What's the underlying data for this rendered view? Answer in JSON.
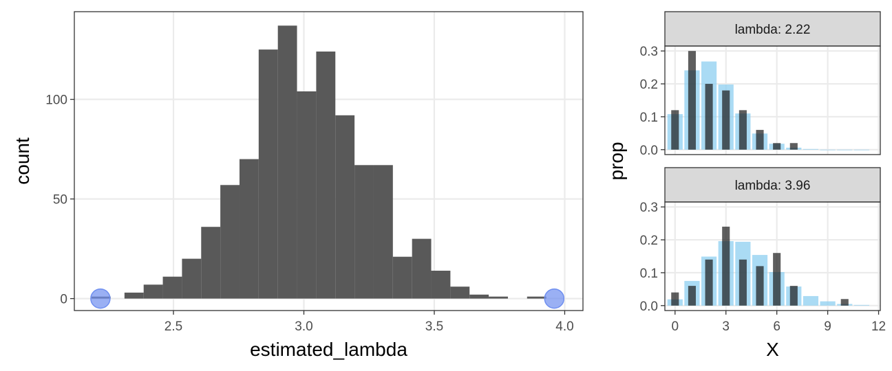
{
  "chart_data": [
    {
      "type": "bar",
      "xlabel": "estimated_lambda",
      "ylabel": "count",
      "xlim": [
        2.12,
        4.07
      ],
      "ylim": [
        -6,
        144
      ],
      "xticks": [
        "2.5",
        "3.0",
        "3.5",
        "4.0"
      ],
      "xtick_values": [
        2.5,
        3.0,
        3.5,
        4.0
      ],
      "yticks": [
        "0",
        "50",
        "100"
      ],
      "ytick_values": [
        0,
        50,
        100
      ],
      "bin_width": 0.0735,
      "bins": [
        {
          "x": 2.2225,
          "count": 1
        },
        {
          "x": 2.349,
          "count": 3
        },
        {
          "x": 2.4225,
          "count": 7
        },
        {
          "x": 2.496,
          "count": 11
        },
        {
          "x": 2.5695,
          "count": 20
        },
        {
          "x": 2.643,
          "count": 36
        },
        {
          "x": 2.7165,
          "count": 57
        },
        {
          "x": 2.79,
          "count": 70
        },
        {
          "x": 2.8635,
          "count": 125
        },
        {
          "x": 2.937,
          "count": 137
        },
        {
          "x": 3.0105,
          "count": 104
        },
        {
          "x": 3.084,
          "count": 124
        },
        {
          "x": 3.1575,
          "count": 92
        },
        {
          "x": 3.231,
          "count": 67
        },
        {
          "x": 3.3045,
          "count": 67
        },
        {
          "x": 3.378,
          "count": 21
        },
        {
          "x": 3.4515,
          "count": 30
        },
        {
          "x": 3.525,
          "count": 14
        },
        {
          "x": 3.5985,
          "count": 6
        },
        {
          "x": 3.672,
          "count": 2
        },
        {
          "x": 3.7455,
          "count": 1
        },
        {
          "x": 3.8925,
          "count": 1
        }
      ],
      "highlight_points": [
        {
          "x": 2.22,
          "y": 0,
          "color": "#6f8ff0"
        },
        {
          "x": 3.96,
          "y": 0,
          "color": "#6f8ff0"
        }
      ],
      "grid": true
    },
    {
      "type": "bar",
      "facet_strip": "lambda: 2.22",
      "xlabel": "X",
      "ylabel": "prop",
      "xlim": [
        -0.6,
        12.1
      ],
      "ylim": [
        -0.015,
        0.315
      ],
      "yticks": [
        "0.0",
        "0.1",
        "0.2",
        "0.3"
      ],
      "ytick_values": [
        0.0,
        0.1,
        0.2,
        0.3
      ],
      "series": [
        {
          "role": "theoretical",
          "color": "#8ecff0",
          "x": [
            0,
            1,
            2,
            3,
            4,
            5,
            6,
            7,
            8,
            9,
            10,
            11
          ],
          "values": [
            0.108,
            0.241,
            0.268,
            0.198,
            0.11,
            0.049,
            0.018,
            0.006,
            0.002,
            0.0,
            0.0,
            0.0
          ]
        },
        {
          "role": "observed",
          "color": "#1a1a1a",
          "x": [
            0,
            1,
            2,
            3,
            4,
            5,
            6,
            7
          ],
          "values": [
            0.12,
            0.3,
            0.2,
            0.18,
            0.12,
            0.06,
            0.02,
            0.02
          ]
        }
      ]
    },
    {
      "type": "bar",
      "facet_strip": "lambda: 3.96",
      "xlabel": "X",
      "ylabel": "prop",
      "xlim": [
        -0.6,
        12.1
      ],
      "ylim": [
        -0.015,
        0.315
      ],
      "xticks": [
        "0",
        "3",
        "6",
        "9",
        "12"
      ],
      "xtick_values": [
        0,
        3,
        6,
        9,
        12
      ],
      "yticks": [
        "0.0",
        "0.1",
        "0.2",
        "0.3"
      ],
      "ytick_values": [
        0.0,
        0.1,
        0.2,
        0.3
      ],
      "series": [
        {
          "role": "theoretical",
          "color": "#8ecff0",
          "x": [
            0,
            1,
            2,
            3,
            4,
            5,
            6,
            7,
            8,
            9,
            10,
            11
          ],
          "values": [
            0.019,
            0.075,
            0.149,
            0.196,
            0.194,
            0.154,
            0.102,
            0.058,
            0.029,
            0.013,
            0.005,
            0.002
          ]
        },
        {
          "role": "observed",
          "color": "#1a1a1a",
          "x": [
            0,
            1,
            2,
            3,
            4,
            5,
            6,
            7,
            10
          ],
          "values": [
            0.04,
            0.06,
            0.14,
            0.24,
            0.14,
            0.12,
            0.16,
            0.06,
            0.02
          ]
        }
      ]
    }
  ],
  "shared": {
    "right_ylabel": "prop",
    "right_xlabel": "X"
  },
  "colors": {
    "bar_fill": "#595959",
    "panel_border": "#333333",
    "grid": "#ebebeb",
    "strip_fill": "#d9d9d9",
    "theoretical": "#8ecff0",
    "observed": "#1a1a1a",
    "point": "#6f8ff0"
  }
}
